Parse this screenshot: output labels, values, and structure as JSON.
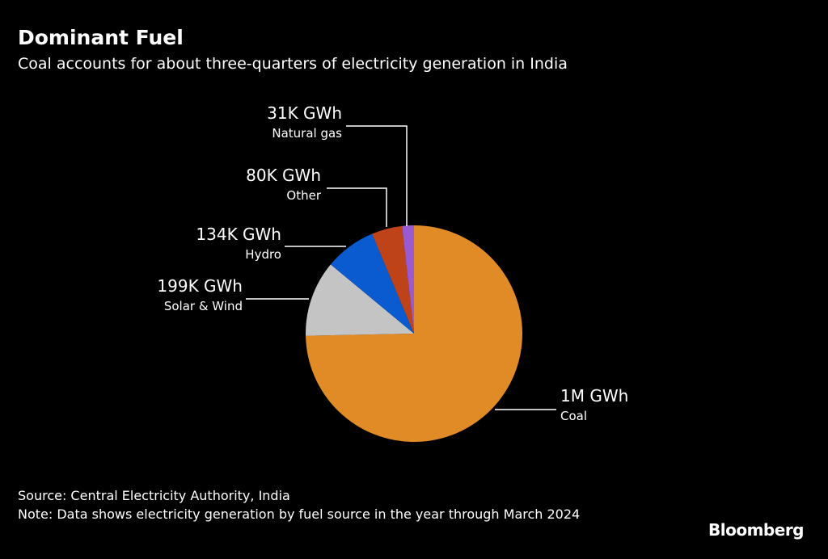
{
  "title": "Dominant Fuel",
  "subtitle": "Coal accounts for about three-quarters of electricity generation in India",
  "chart_data": {
    "type": "pie",
    "start": "top, clockwise",
    "slices": [
      {
        "name": "Coal",
        "value": 1310000,
        "label": "1M GWh",
        "color": "#e08b26"
      },
      {
        "name": "Solar & Wind",
        "value": 199000,
        "label": "199K GWh",
        "color": "#c4c4c4"
      },
      {
        "name": "Hydro",
        "value": 134000,
        "label": "134K GWh",
        "color": "#0a5ad0"
      },
      {
        "name": "Other",
        "value": 80000,
        "label": "80K GWh",
        "color": "#bf4318"
      },
      {
        "name": "Natural gas",
        "value": 31000,
        "label": "31K GWh",
        "color": "#9a5bd0"
      }
    ]
  },
  "source": "Source: Central Electricity Authority, India",
  "note": "Note: Data shows electricity generation by fuel source in the year through March 2024",
  "logo": "Bloomberg"
}
